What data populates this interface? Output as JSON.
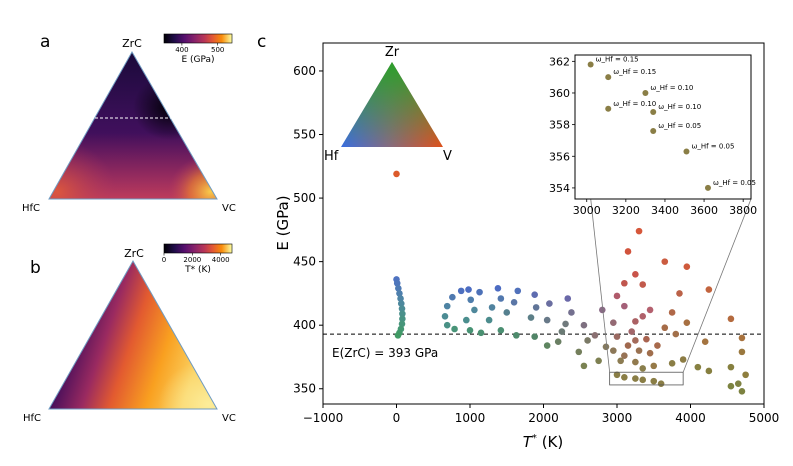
{
  "panels": {
    "a": {
      "label": "a",
      "corners": {
        "top": "ZrC",
        "left": "HfC",
        "right": "VC"
      },
      "colorbar": {
        "label": "E (GPa)",
        "ticks": [
          400,
          500
        ],
        "range": [
          350,
          540
        ]
      }
    },
    "b": {
      "label": "b",
      "corners": {
        "top": "ZrC",
        "left": "HfC",
        "right": "VC"
      },
      "colorbar": {
        "label": "T* (K)",
        "ticks": [
          0,
          2000,
          4000
        ],
        "range": [
          0,
          4800
        ]
      }
    },
    "c": {
      "label": "c",
      "color_key": {
        "top": "Zr",
        "left": "Hf",
        "right": "V"
      },
      "reference_line": {
        "value": 393,
        "label": "E(ZrC) = 393 GPa"
      }
    }
  },
  "chart_data": {
    "type": "scatter",
    "xlabel": "T* (K)",
    "ylabel": "E (GPa)",
    "xlim": [
      -1000,
      5000
    ],
    "ylim": [
      338,
      622
    ],
    "xticks": [
      -1000,
      0,
      1000,
      2000,
      3000,
      4000,
      5000
    ],
    "yticks": [
      350,
      400,
      450,
      500,
      550,
      600
    ],
    "grid": false,
    "reference_line_y": 393,
    "points": [
      {
        "x": 0,
        "y": 519,
        "c": "#dc5a2a"
      },
      {
        "x": 0,
        "y": 436,
        "c": "#4e72c0"
      },
      {
        "x": 10,
        "y": 433,
        "c": "#4e76bb"
      },
      {
        "x": 25,
        "y": 429,
        "c": "#4e7ab4"
      },
      {
        "x": 40,
        "y": 425,
        "c": "#4e7fad"
      },
      {
        "x": 55,
        "y": 421,
        "c": "#4e84a5"
      },
      {
        "x": 65,
        "y": 417,
        "c": "#4d889d"
      },
      {
        "x": 75,
        "y": 413,
        "c": "#4c8c95"
      },
      {
        "x": 80,
        "y": 409,
        "c": "#4b908c"
      },
      {
        "x": 80,
        "y": 405,
        "c": "#499384"
      },
      {
        "x": 75,
        "y": 401,
        "c": "#47957b"
      },
      {
        "x": 60,
        "y": 397,
        "c": "#449773"
      },
      {
        "x": 40,
        "y": 394,
        "c": "#42996b"
      },
      {
        "x": 20,
        "y": 392,
        "c": "#409a64"
      },
      {
        "x": 880,
        "y": 427,
        "c": "#4d6fbf"
      },
      {
        "x": 760,
        "y": 422,
        "c": "#4f79b0"
      },
      {
        "x": 690,
        "y": 415,
        "c": "#4e83a3"
      },
      {
        "x": 660,
        "y": 407,
        "c": "#4c8c94"
      },
      {
        "x": 690,
        "y": 400,
        "c": "#4a9186"
      },
      {
        "x": 790,
        "y": 397,
        "c": "#489478"
      },
      {
        "x": 980,
        "y": 428,
        "c": "#4c6cc2"
      },
      {
        "x": 1130,
        "y": 426,
        "c": "#4d71b8"
      },
      {
        "x": 1010,
        "y": 420,
        "c": "#4f7dab"
      },
      {
        "x": 1060,
        "y": 412,
        "c": "#4f889b"
      },
      {
        "x": 950,
        "y": 404,
        "c": "#4b8e8e"
      },
      {
        "x": 1000,
        "y": 396,
        "c": "#479374"
      },
      {
        "x": 1150,
        "y": 394,
        "c": "#4a9071"
      },
      {
        "x": 1380,
        "y": 429,
        "c": "#4d6cc2"
      },
      {
        "x": 1420,
        "y": 421,
        "c": "#5278ae"
      },
      {
        "x": 1300,
        "y": 414,
        "c": "#50839f"
      },
      {
        "x": 1260,
        "y": 404,
        "c": "#4c8c8d"
      },
      {
        "x": 1420,
        "y": 396,
        "c": "#4b8f72"
      },
      {
        "x": 1630,
        "y": 392,
        "c": "#4e8b6c"
      },
      {
        "x": 1880,
        "y": 391,
        "c": "#528568"
      },
      {
        "x": 1650,
        "y": 427,
        "c": "#5071bb"
      },
      {
        "x": 1600,
        "y": 418,
        "c": "#5a76a6"
      },
      {
        "x": 1500,
        "y": 410,
        "c": "#55808f"
      },
      {
        "x": 1880,
        "y": 424,
        "c": "#5e6cb0"
      },
      {
        "x": 1900,
        "y": 414,
        "c": "#617598"
      },
      {
        "x": 1830,
        "y": 406,
        "c": "#5c7f88"
      },
      {
        "x": 2080,
        "y": 417,
        "c": "#6a6ea0"
      },
      {
        "x": 2050,
        "y": 404,
        "c": "#687988"
      },
      {
        "x": 2250,
        "y": 395,
        "c": "#6a7a74"
      },
      {
        "x": 2330,
        "y": 421,
        "c": "#6a68a8"
      },
      {
        "x": 2380,
        "y": 410,
        "c": "#74708f"
      },
      {
        "x": 2300,
        "y": 401,
        "c": "#707a7d"
      },
      {
        "x": 2200,
        "y": 387,
        "c": "#6a7f63"
      },
      {
        "x": 2050,
        "y": 384,
        "c": "#5e8560"
      },
      {
        "x": 2550,
        "y": 400,
        "c": "#7e7080"
      },
      {
        "x": 2600,
        "y": 388,
        "c": "#7b7a66"
      },
      {
        "x": 2480,
        "y": 379,
        "c": "#747f5c"
      },
      {
        "x": 2800,
        "y": 412,
        "c": "#8a6a86"
      },
      {
        "x": 2700,
        "y": 392,
        "c": "#8a7172"
      },
      {
        "x": 2850,
        "y": 383,
        "c": "#857a5e"
      },
      {
        "x": 2950,
        "y": 402,
        "c": "#946a74"
      },
      {
        "x": 3000,
        "y": 391,
        "c": "#9a6a62"
      },
      {
        "x": 2950,
        "y": 380,
        "c": "#8c7858"
      },
      {
        "x": 3050,
        "y": 372,
        "c": "#8c7c52"
      },
      {
        "x": 2750,
        "y": 372,
        "c": "#7e8052"
      },
      {
        "x": 2550,
        "y": 368,
        "c": "#7a8252"
      },
      {
        "x": 3150,
        "y": 384,
        "c": "#a0684e"
      },
      {
        "x": 3100,
        "y": 376,
        "c": "#977356"
      },
      {
        "x": 3200,
        "y": 395,
        "c": "#a2666a"
      },
      {
        "x": 3250,
        "y": 388,
        "c": "#a46a5a"
      },
      {
        "x": 3300,
        "y": 380,
        "c": "#9a7252"
      },
      {
        "x": 3250,
        "y": 371,
        "c": "#917a4e"
      },
      {
        "x": 3350,
        "y": 366,
        "c": "#8a7f4c"
      },
      {
        "x": 3400,
        "y": 389,
        "c": "#a96450"
      },
      {
        "x": 3450,
        "y": 378,
        "c": "#a06e4c"
      },
      {
        "x": 3500,
        "y": 368,
        "c": "#967a48"
      },
      {
        "x": 3550,
        "y": 384,
        "c": "#a86a4c"
      },
      {
        "x": 3250,
        "y": 403,
        "c": "#ab6164"
      },
      {
        "x": 3350,
        "y": 407,
        "c": "#b0606a"
      },
      {
        "x": 3450,
        "y": 412,
        "c": "#b4606e"
      },
      {
        "x": 3100,
        "y": 415,
        "c": "#a46078"
      },
      {
        "x": 3000,
        "y": 423,
        "c": "#b05a6a"
      },
      {
        "x": 3100,
        "y": 433,
        "c": "#c0564e"
      },
      {
        "x": 3250,
        "y": 440,
        "c": "#c9544a"
      },
      {
        "x": 3150,
        "y": 458,
        "c": "#d1533c"
      },
      {
        "x": 3300,
        "y": 474,
        "c": "#d6573a"
      },
      {
        "x": 3350,
        "y": 432,
        "c": "#c25a4c"
      },
      {
        "x": 3650,
        "y": 450,
        "c": "#cb5c40"
      },
      {
        "x": 3950,
        "y": 446,
        "c": "#cf5a3c"
      },
      {
        "x": 3850,
        "y": 425,
        "c": "#bb6248"
      },
      {
        "x": 3750,
        "y": 410,
        "c": "#b06848"
      },
      {
        "x": 3650,
        "y": 398,
        "c": "#a66c48"
      },
      {
        "x": 3800,
        "y": 393,
        "c": "#a2704a"
      },
      {
        "x": 3950,
        "y": 402,
        "c": "#a77042"
      },
      {
        "x": 3900,
        "y": 373,
        "c": "#8c7c44"
      },
      {
        "x": 3750,
        "y": 370,
        "c": "#8a7e46"
      },
      {
        "x": 4250,
        "y": 428,
        "c": "#c2643e"
      },
      {
        "x": 4200,
        "y": 387,
        "c": "#a47440"
      },
      {
        "x": 4100,
        "y": 367,
        "c": "#878142"
      },
      {
        "x": 4250,
        "y": 364,
        "c": "#867f40"
      },
      {
        "x": 4550,
        "y": 405,
        "c": "#b46a3e"
      },
      {
        "x": 4650,
        "y": 354,
        "c": "#7e8242"
      },
      {
        "x": 4550,
        "y": 352,
        "c": "#7c8340"
      },
      {
        "x": 4700,
        "y": 348,
        "c": "#7c8240"
      },
      {
        "x": 4750,
        "y": 361,
        "c": "#8e7e3e"
      },
      {
        "x": 4700,
        "y": 379,
        "c": "#9a783e"
      },
      {
        "x": 4700,
        "y": 390,
        "c": "#a8723e"
      },
      {
        "x": 4550,
        "y": 367,
        "c": "#86803f"
      },
      {
        "x": 3000,
        "y": 361,
        "c": "#8a7e46"
      },
      {
        "x": 3100,
        "y": 359,
        "c": "#8a7e46"
      },
      {
        "x": 3250,
        "y": 358,
        "c": "#8a7e46"
      },
      {
        "x": 3350,
        "y": 357,
        "c": "#8a7e46"
      },
      {
        "x": 3500,
        "y": 356,
        "c": "#8a7e46"
      },
      {
        "x": 3600,
        "y": 354,
        "c": "#8a7e46"
      }
    ],
    "inset": {
      "xlim": [
        2940,
        3840
      ],
      "ylim": [
        353.3,
        362.4
      ],
      "xticks": [
        3000,
        3200,
        3400,
        3600,
        3800
      ],
      "yticks": [
        354,
        356,
        358,
        360,
        362
      ],
      "zoom_box": {
        "x": [
          2900,
          3900
        ],
        "y": [
          353,
          363
        ]
      },
      "points": [
        {
          "x": 3020,
          "y": 361.8,
          "label": "ω_Hf = 0.15"
        },
        {
          "x": 3110,
          "y": 361.0,
          "label": "ω_Hf = 0.15"
        },
        {
          "x": 3300,
          "y": 360.0,
          "label": "ω_Hf = 0.10"
        },
        {
          "x": 3110,
          "y": 359.0,
          "label": "ω_Hf = 0.10"
        },
        {
          "x": 3340,
          "y": 358.8,
          "label": "ω_Hf = 0.10"
        },
        {
          "x": 3340,
          "y": 357.6,
          "label": "ω_Hf = 0.05"
        },
        {
          "x": 3510,
          "y": 356.3,
          "label": "ω_Hf = 0.05"
        },
        {
          "x": 3620,
          "y": 354.0,
          "label": "ω_Hf = 0.05"
        }
      ]
    }
  }
}
